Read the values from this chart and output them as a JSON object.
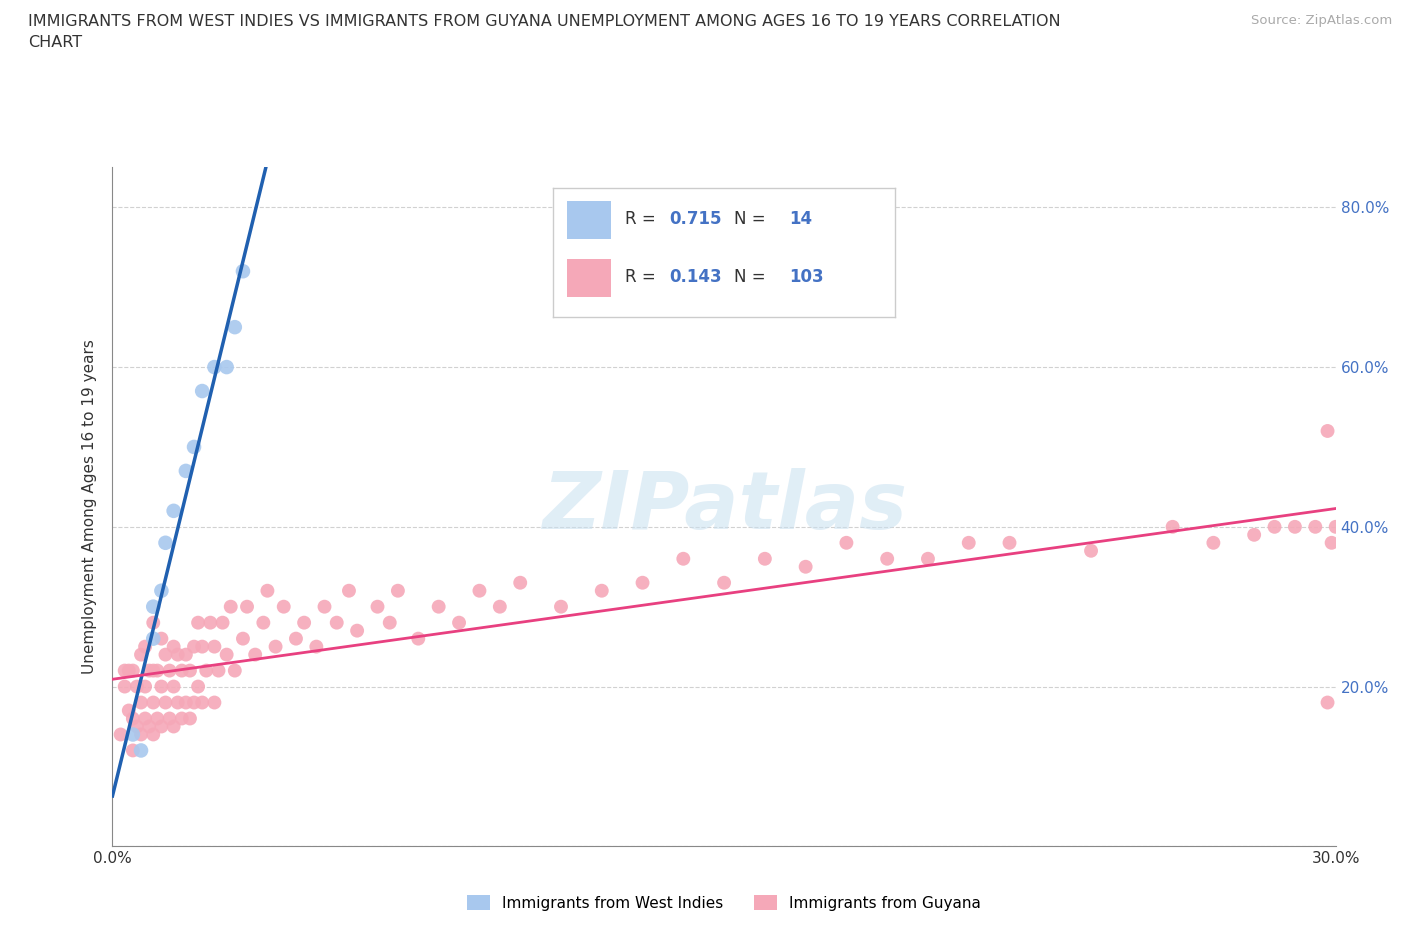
{
  "title_line1": "IMMIGRANTS FROM WEST INDIES VS IMMIGRANTS FROM GUYANA UNEMPLOYMENT AMONG AGES 16 TO 19 YEARS CORRELATION",
  "title_line2": "CHART",
  "source": "Source: ZipAtlas.com",
  "ylabel": "Unemployment Among Ages 16 to 19 years",
  "xlim": [
    0.0,
    0.3
  ],
  "ylim": [
    0.0,
    0.85
  ],
  "x_ticks": [
    0.0,
    0.05,
    0.1,
    0.15,
    0.2,
    0.25,
    0.3
  ],
  "y_ticks": [
    0.0,
    0.2,
    0.4,
    0.6,
    0.8
  ],
  "west_indies_color": "#A8C8EE",
  "guyana_color": "#F5A8B8",
  "west_indies_line_color": "#2060B0",
  "guyana_line_color": "#E84080",
  "west_indies_R": 0.715,
  "west_indies_N": 14,
  "guyana_R": 0.143,
  "guyana_N": 103,
  "legend_label_west_indies": "Immigrants from West Indies",
  "legend_label_guyana": "Immigrants from Guyana",
  "west_indies_x": [
    0.005,
    0.007,
    0.01,
    0.01,
    0.012,
    0.013,
    0.015,
    0.018,
    0.02,
    0.022,
    0.025,
    0.028,
    0.03,
    0.032
  ],
  "west_indies_y": [
    0.14,
    0.12,
    0.26,
    0.3,
    0.32,
    0.38,
    0.42,
    0.47,
    0.5,
    0.57,
    0.6,
    0.6,
    0.65,
    0.72
  ],
  "guyana_x": [
    0.002,
    0.003,
    0.003,
    0.004,
    0.004,
    0.005,
    0.005,
    0.005,
    0.006,
    0.006,
    0.007,
    0.007,
    0.007,
    0.008,
    0.008,
    0.008,
    0.009,
    0.009,
    0.01,
    0.01,
    0.01,
    0.01,
    0.011,
    0.011,
    0.012,
    0.012,
    0.012,
    0.013,
    0.013,
    0.014,
    0.014,
    0.015,
    0.015,
    0.015,
    0.016,
    0.016,
    0.017,
    0.017,
    0.018,
    0.018,
    0.019,
    0.019,
    0.02,
    0.02,
    0.021,
    0.021,
    0.022,
    0.022,
    0.023,
    0.024,
    0.025,
    0.025,
    0.026,
    0.027,
    0.028,
    0.029,
    0.03,
    0.032,
    0.033,
    0.035,
    0.037,
    0.038,
    0.04,
    0.042,
    0.045,
    0.047,
    0.05,
    0.052,
    0.055,
    0.058,
    0.06,
    0.065,
    0.068,
    0.07,
    0.075,
    0.08,
    0.085,
    0.09,
    0.095,
    0.1,
    0.11,
    0.12,
    0.13,
    0.14,
    0.15,
    0.16,
    0.17,
    0.18,
    0.19,
    0.2,
    0.21,
    0.22,
    0.24,
    0.26,
    0.27,
    0.28,
    0.285,
    0.29,
    0.295,
    0.298,
    0.298,
    0.299,
    0.3
  ],
  "guyana_y": [
    0.14,
    0.2,
    0.22,
    0.17,
    0.22,
    0.12,
    0.16,
    0.22,
    0.15,
    0.2,
    0.14,
    0.18,
    0.24,
    0.16,
    0.2,
    0.25,
    0.15,
    0.22,
    0.14,
    0.18,
    0.22,
    0.28,
    0.16,
    0.22,
    0.15,
    0.2,
    0.26,
    0.18,
    0.24,
    0.16,
    0.22,
    0.15,
    0.2,
    0.25,
    0.18,
    0.24,
    0.16,
    0.22,
    0.18,
    0.24,
    0.16,
    0.22,
    0.18,
    0.25,
    0.2,
    0.28,
    0.18,
    0.25,
    0.22,
    0.28,
    0.18,
    0.25,
    0.22,
    0.28,
    0.24,
    0.3,
    0.22,
    0.26,
    0.3,
    0.24,
    0.28,
    0.32,
    0.25,
    0.3,
    0.26,
    0.28,
    0.25,
    0.3,
    0.28,
    0.32,
    0.27,
    0.3,
    0.28,
    0.32,
    0.26,
    0.3,
    0.28,
    0.32,
    0.3,
    0.33,
    0.3,
    0.32,
    0.33,
    0.36,
    0.33,
    0.36,
    0.35,
    0.38,
    0.36,
    0.36,
    0.38,
    0.38,
    0.37,
    0.4,
    0.38,
    0.39,
    0.4,
    0.4,
    0.4,
    0.18,
    0.52,
    0.38,
    0.4
  ]
}
